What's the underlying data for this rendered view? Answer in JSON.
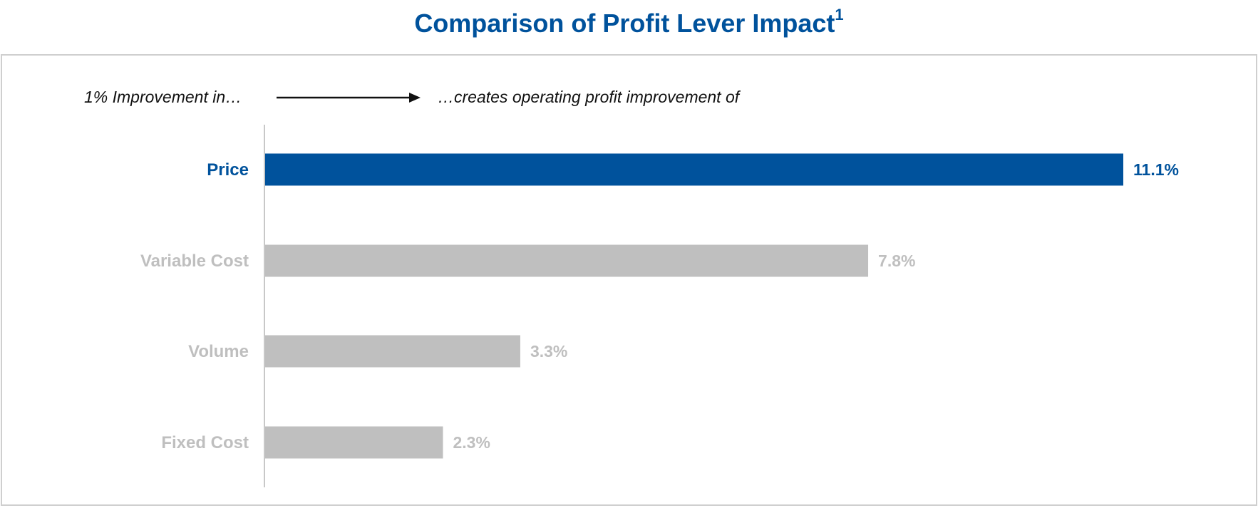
{
  "title": {
    "text": "Comparison of Profit Lever Impact",
    "footnote_marker": "1"
  },
  "header_row": {
    "left_text": "1% Improvement in…",
    "right_text": "…creates operating profit improvement of",
    "arrow_icon": "right-arrow-icon"
  },
  "colors": {
    "highlight": "#00529c",
    "muted_bar": "#bfbfbf",
    "muted_text": "#bfbfbf",
    "axis": "#c8c8c8"
  },
  "chart_data": {
    "type": "bar",
    "orientation": "horizontal",
    "title": "Comparison of Profit Lever Impact",
    "xlabel": "",
    "ylabel": "",
    "xlim": [
      0,
      11.1
    ],
    "grid": false,
    "categories": [
      "Price",
      "Variable Cost",
      "Volume",
      "Fixed Cost"
    ],
    "values": [
      11.1,
      7.8,
      3.3,
      2.3
    ],
    "value_labels": [
      "11.1%",
      "7.8%",
      "3.3%",
      "2.3%"
    ],
    "highlight_index": 0
  }
}
